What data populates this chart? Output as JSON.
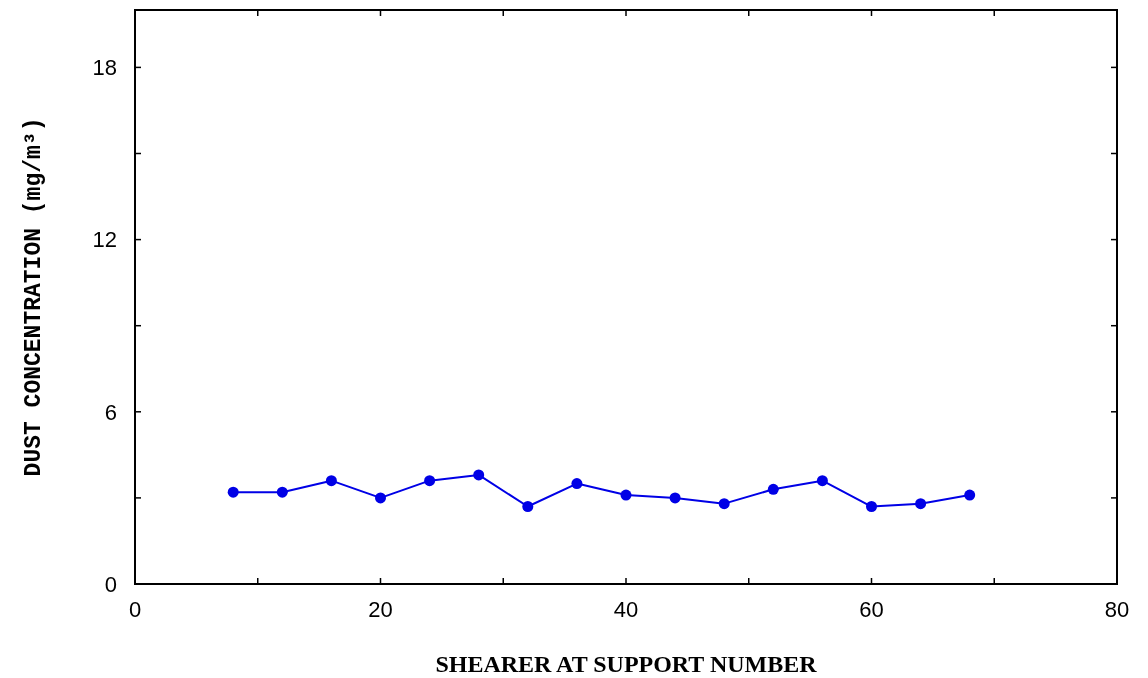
{
  "chart_data": {
    "type": "line",
    "xlabel": "SHEARER AT SUPPORT NUMBER",
    "ylabel": "DUST CONCENTRATION (mg/m³)",
    "x": [
      8,
      12,
      16,
      20,
      24,
      28,
      32,
      36,
      40,
      44,
      48,
      52,
      56,
      60,
      64,
      68
    ],
    "series": [
      {
        "color": "#0000e6",
        "values": [
          3.2,
          3.2,
          3.6,
          3.0,
          3.6,
          3.8,
          2.7,
          3.5,
          3.1,
          3.0,
          2.8,
          3.3,
          3.6,
          2.7,
          2.8,
          3.1
        ]
      }
    ],
    "xlim": [
      0,
      80
    ],
    "ylim": [
      0,
      20
    ],
    "xticks": [
      0,
      {
        "value": 10,
        "label": null
      },
      20,
      {
        "value": 30,
        "label": null
      },
      40,
      {
        "value": 50,
        "label": null
      },
      60,
      {
        "value": 70,
        "label": null
      },
      80
    ],
    "yticks": [
      0,
      {
        "value": 3,
        "label": null
      },
      6,
      {
        "value": 9,
        "label": null
      },
      12,
      {
        "value": 15,
        "label": null
      },
      18
    ],
    "grid": false,
    "marker": "circle",
    "line_style": "solid"
  }
}
